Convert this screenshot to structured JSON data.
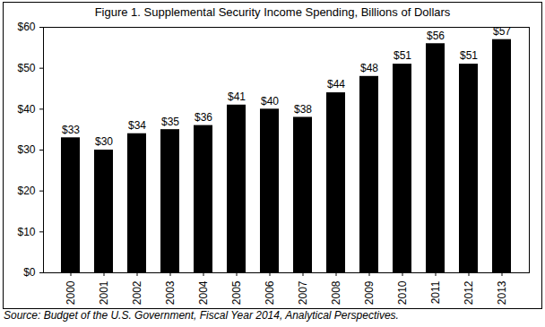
{
  "chart_data": {
    "type": "bar",
    "title": "Figure 1. Supplemental Security Income Spending, Billions of Dollars",
    "source": "Source: Budget of the U.S. Government, Fiscal Year 2014, Analytical Perspectives.",
    "categories": [
      "2000",
      "2001",
      "2002",
      "2003",
      "2004",
      "2005",
      "2006",
      "2007",
      "2008",
      "2009",
      "2010",
      "2011",
      "2012",
      "2013"
    ],
    "values": [
      33,
      30,
      34,
      35,
      36,
      41,
      40,
      38,
      44,
      48,
      51,
      56,
      51,
      57
    ],
    "value_labels": [
      "$33",
      "$30",
      "$34",
      "$35",
      "$36",
      "$41",
      "$40",
      "$38",
      "$44",
      "$48",
      "$51",
      "$56",
      "$51",
      "$57"
    ],
    "data_labels": true,
    "color": "#000000",
    "ylim": [
      0,
      60
    ],
    "yticks": [
      {
        "value": 0,
        "label": "$0"
      },
      {
        "value": 10,
        "label": "$10"
      },
      {
        "value": 20,
        "label": "$20"
      },
      {
        "value": 30,
        "label": "$30"
      },
      {
        "value": 40,
        "label": "$40"
      },
      {
        "value": 50,
        "label": "$50"
      },
      {
        "value": 60,
        "label": "$60"
      }
    ],
    "grid": false
  }
}
